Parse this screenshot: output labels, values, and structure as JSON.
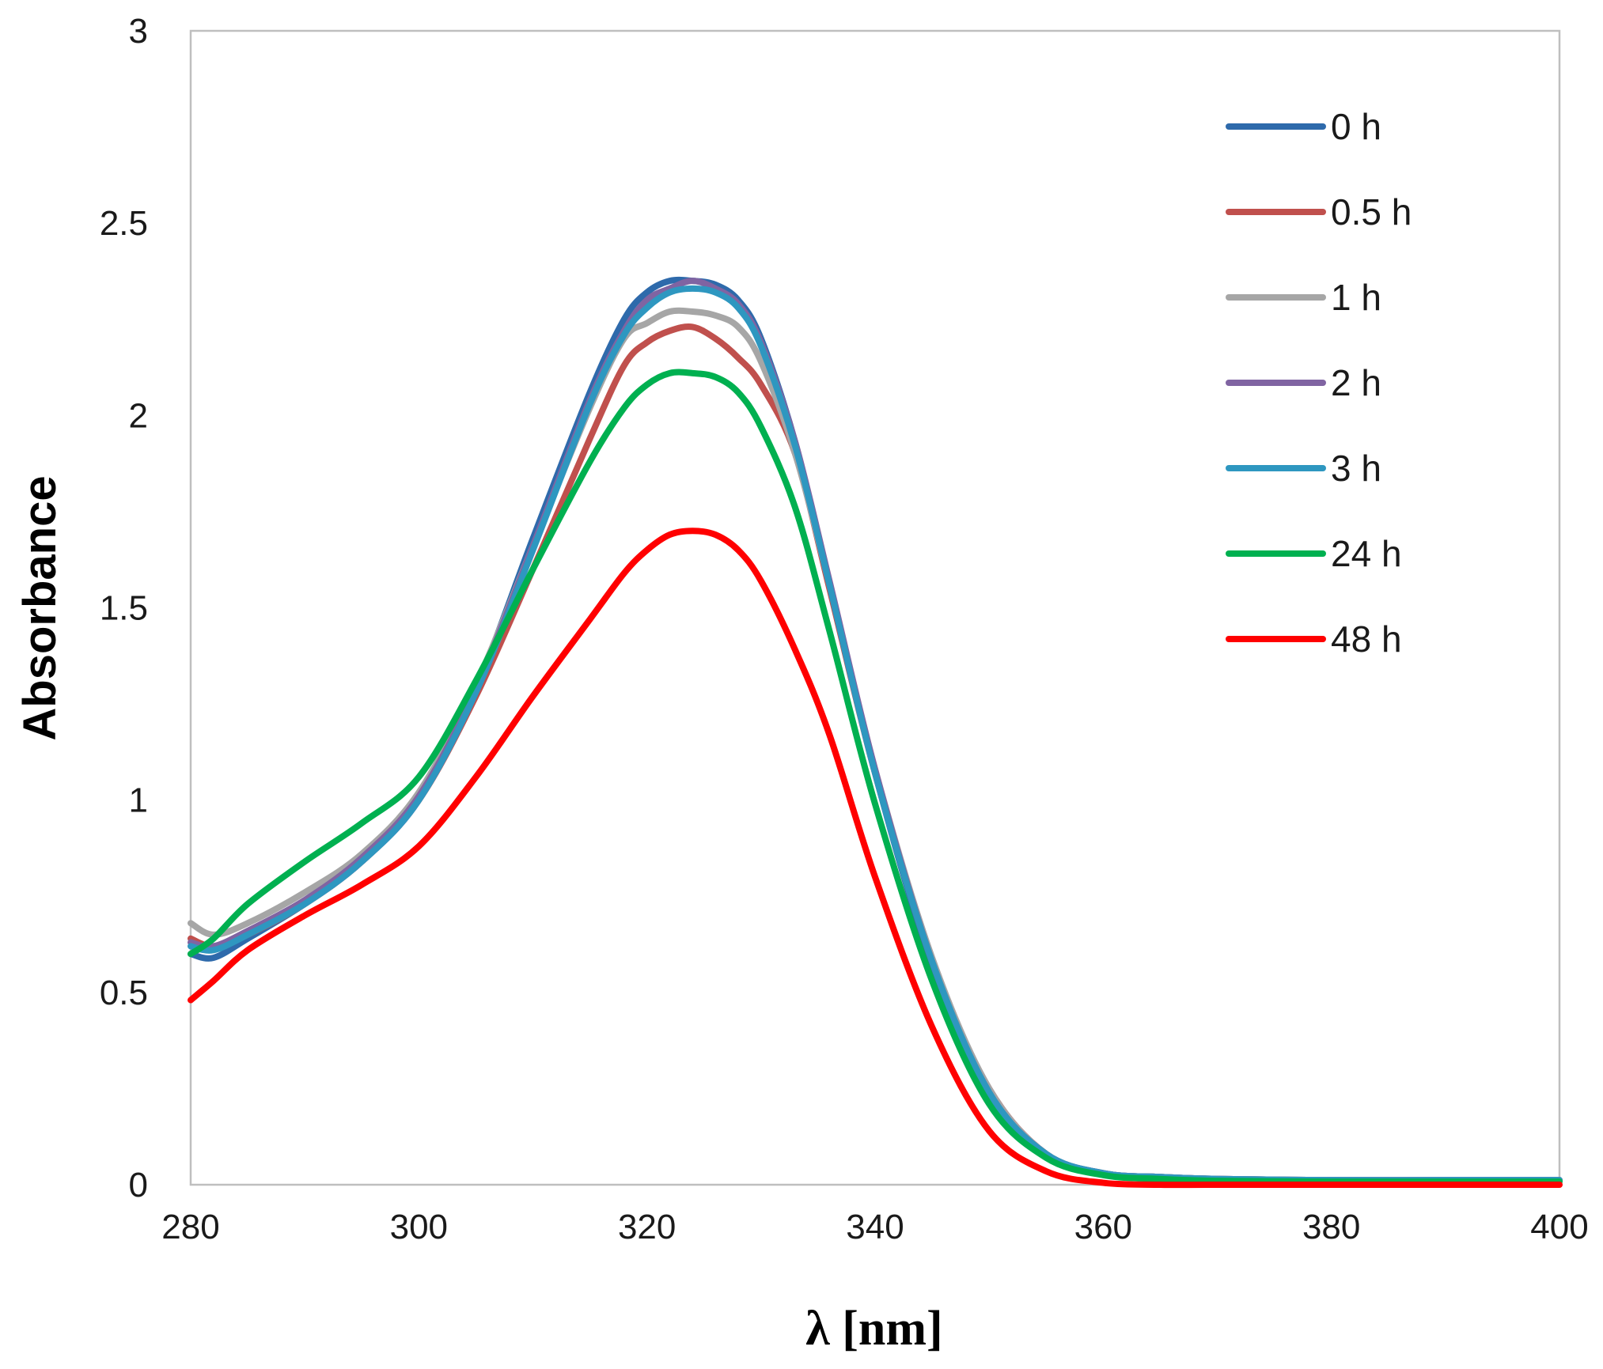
{
  "chart_data": {
    "type": "line",
    "title": "",
    "xlabel": "λ [nm]",
    "ylabel": "Absorbance",
    "xlim": [
      280,
      400
    ],
    "ylim": [
      0,
      3
    ],
    "x_ticks": [
      280,
      300,
      320,
      340,
      360,
      380,
      400
    ],
    "y_ticks": [
      0,
      0.5,
      1,
      1.5,
      2,
      2.5,
      3
    ],
    "x_tick_labels": [
      "280",
      "300",
      "320",
      "340",
      "360",
      "380",
      "400"
    ],
    "y_tick_labels": [
      "0",
      "0.5",
      "1",
      "1.5",
      "2",
      "2.5",
      "3"
    ],
    "grid": false,
    "legend_position": "top-right",
    "x": [
      280,
      282,
      285,
      290,
      295,
      300,
      305,
      310,
      315,
      318,
      320,
      322,
      324,
      326,
      328,
      330,
      333,
      336,
      340,
      345,
      350,
      355,
      360,
      365,
      370,
      380,
      390,
      400
    ],
    "series": [
      {
        "name": "0 h",
        "color": "#2e6aab",
        "values": [
          0.6,
          0.59,
          0.64,
          0.73,
          0.84,
          1.0,
          1.29,
          1.68,
          2.06,
          2.25,
          2.32,
          2.35,
          2.35,
          2.34,
          2.3,
          2.2,
          1.93,
          1.56,
          1.07,
          0.57,
          0.24,
          0.08,
          0.03,
          0.02,
          0.015,
          0.012,
          0.012,
          0.012
        ]
      },
      {
        "name": "0.5 h",
        "color": "#c0504d",
        "values": [
          0.64,
          0.62,
          0.65,
          0.73,
          0.84,
          1.0,
          1.27,
          1.6,
          1.94,
          2.13,
          2.19,
          2.22,
          2.23,
          2.2,
          2.15,
          2.08,
          1.9,
          1.55,
          1.07,
          0.58,
          0.25,
          0.08,
          0.03,
          0.02,
          0.015,
          0.012,
          0.012,
          0.012
        ]
      },
      {
        "name": "1 h",
        "color": "#a6a6a6",
        "values": [
          0.68,
          0.65,
          0.68,
          0.76,
          0.86,
          1.02,
          1.3,
          1.66,
          2.02,
          2.2,
          2.24,
          2.27,
          2.27,
          2.26,
          2.23,
          2.14,
          1.9,
          1.56,
          1.08,
          0.59,
          0.25,
          0.08,
          0.03,
          0.02,
          0.015,
          0.012,
          0.012,
          0.012
        ]
      },
      {
        "name": "2 h",
        "color": "#8064a2",
        "values": [
          0.63,
          0.62,
          0.66,
          0.74,
          0.85,
          1.01,
          1.29,
          1.66,
          2.04,
          2.22,
          2.3,
          2.33,
          2.35,
          2.33,
          2.29,
          2.19,
          1.93,
          1.57,
          1.08,
          0.58,
          0.24,
          0.08,
          0.03,
          0.02,
          0.015,
          0.012,
          0.012,
          0.012
        ]
      },
      {
        "name": "3 h",
        "color": "#2e97c0",
        "values": [
          0.62,
          0.61,
          0.65,
          0.73,
          0.84,
          1.0,
          1.28,
          1.65,
          2.03,
          2.21,
          2.28,
          2.32,
          2.33,
          2.32,
          2.28,
          2.18,
          1.92,
          1.56,
          1.07,
          0.58,
          0.24,
          0.08,
          0.03,
          0.02,
          0.015,
          0.012,
          0.012,
          0.012
        ]
      },
      {
        "name": "24 h",
        "color": "#00b050",
        "values": [
          0.6,
          0.64,
          0.73,
          0.84,
          0.94,
          1.06,
          1.31,
          1.6,
          1.88,
          2.02,
          2.08,
          2.11,
          2.11,
          2.1,
          2.06,
          1.97,
          1.76,
          1.44,
          0.99,
          0.53,
          0.21,
          0.07,
          0.025,
          0.015,
          0.01,
          0.008,
          0.008,
          0.008
        ]
      },
      {
        "name": "48 h",
        "color": "#ff0000",
        "values": [
          0.48,
          0.53,
          0.61,
          0.7,
          0.78,
          0.88,
          1.06,
          1.27,
          1.47,
          1.59,
          1.65,
          1.69,
          1.7,
          1.69,
          1.65,
          1.57,
          1.39,
          1.17,
          0.8,
          0.41,
          0.14,
          0.035,
          0.005,
          0.0,
          0.0,
          0.0,
          0.0,
          0.0
        ]
      }
    ]
  }
}
